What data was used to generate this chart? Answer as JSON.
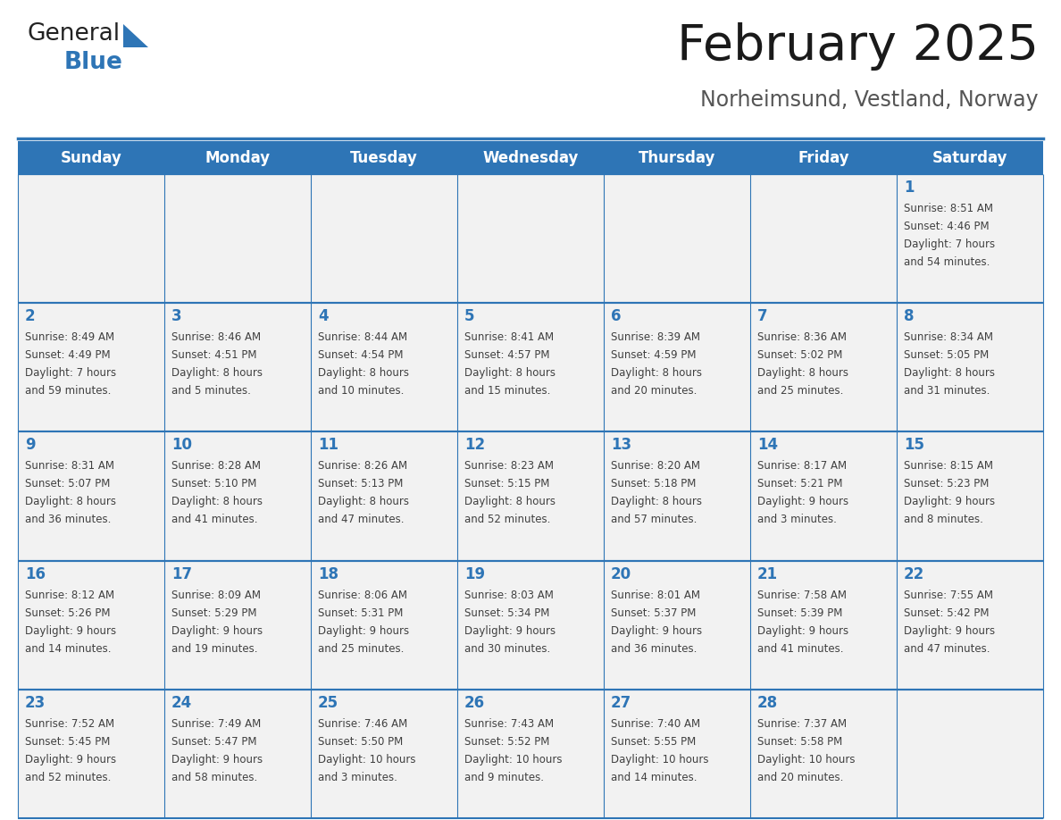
{
  "title": "February 2025",
  "subtitle": "Norheimsund, Vestland, Norway",
  "header_bg": "#2E75B6",
  "header_text_color": "#FFFFFF",
  "cell_bg": "#F2F2F2",
  "day_number_color": "#2E75B6",
  "text_color": "#404040",
  "border_color": "#2E75B6",
  "days_of_week": [
    "Sunday",
    "Monday",
    "Tuesday",
    "Wednesday",
    "Thursday",
    "Friday",
    "Saturday"
  ],
  "logo_general_color": "#222222",
  "logo_blue_color": "#2E75B6",
  "calendar_data": {
    "1": {
      "sunrise": "8:51 AM",
      "sunset": "4:46 PM",
      "daylight": "7 hours and 54 minutes."
    },
    "2": {
      "sunrise": "8:49 AM",
      "sunset": "4:49 PM",
      "daylight": "7 hours and 59 minutes."
    },
    "3": {
      "sunrise": "8:46 AM",
      "sunset": "4:51 PM",
      "daylight": "8 hours and 5 minutes."
    },
    "4": {
      "sunrise": "8:44 AM",
      "sunset": "4:54 PM",
      "daylight": "8 hours and 10 minutes."
    },
    "5": {
      "sunrise": "8:41 AM",
      "sunset": "4:57 PM",
      "daylight": "8 hours and 15 minutes."
    },
    "6": {
      "sunrise": "8:39 AM",
      "sunset": "4:59 PM",
      "daylight": "8 hours and 20 minutes."
    },
    "7": {
      "sunrise": "8:36 AM",
      "sunset": "5:02 PM",
      "daylight": "8 hours and 25 minutes."
    },
    "8": {
      "sunrise": "8:34 AM",
      "sunset": "5:05 PM",
      "daylight": "8 hours and 31 minutes."
    },
    "9": {
      "sunrise": "8:31 AM",
      "sunset": "5:07 PM",
      "daylight": "8 hours and 36 minutes."
    },
    "10": {
      "sunrise": "8:28 AM",
      "sunset": "5:10 PM",
      "daylight": "8 hours and 41 minutes."
    },
    "11": {
      "sunrise": "8:26 AM",
      "sunset": "5:13 PM",
      "daylight": "8 hours and 47 minutes."
    },
    "12": {
      "sunrise": "8:23 AM",
      "sunset": "5:15 PM",
      "daylight": "8 hours and 52 minutes."
    },
    "13": {
      "sunrise": "8:20 AM",
      "sunset": "5:18 PM",
      "daylight": "8 hours and 57 minutes."
    },
    "14": {
      "sunrise": "8:17 AM",
      "sunset": "5:21 PM",
      "daylight": "9 hours and 3 minutes."
    },
    "15": {
      "sunrise": "8:15 AM",
      "sunset": "5:23 PM",
      "daylight": "9 hours and 8 minutes."
    },
    "16": {
      "sunrise": "8:12 AM",
      "sunset": "5:26 PM",
      "daylight": "9 hours and 14 minutes."
    },
    "17": {
      "sunrise": "8:09 AM",
      "sunset": "5:29 PM",
      "daylight": "9 hours and 19 minutes."
    },
    "18": {
      "sunrise": "8:06 AM",
      "sunset": "5:31 PM",
      "daylight": "9 hours and 25 minutes."
    },
    "19": {
      "sunrise": "8:03 AM",
      "sunset": "5:34 PM",
      "daylight": "9 hours and 30 minutes."
    },
    "20": {
      "sunrise": "8:01 AM",
      "sunset": "5:37 PM",
      "daylight": "9 hours and 36 minutes."
    },
    "21": {
      "sunrise": "7:58 AM",
      "sunset": "5:39 PM",
      "daylight": "9 hours and 41 minutes."
    },
    "22": {
      "sunrise": "7:55 AM",
      "sunset": "5:42 PM",
      "daylight": "9 hours and 47 minutes."
    },
    "23": {
      "sunrise": "7:52 AM",
      "sunset": "5:45 PM",
      "daylight": "9 hours and 52 minutes."
    },
    "24": {
      "sunrise": "7:49 AM",
      "sunset": "5:47 PM",
      "daylight": "9 hours and 58 minutes."
    },
    "25": {
      "sunrise": "7:46 AM",
      "sunset": "5:50 PM",
      "daylight": "10 hours and 3 minutes."
    },
    "26": {
      "sunrise": "7:43 AM",
      "sunset": "5:52 PM",
      "daylight": "10 hours and 9 minutes."
    },
    "27": {
      "sunrise": "7:40 AM",
      "sunset": "5:55 PM",
      "daylight": "10 hours and 14 minutes."
    },
    "28": {
      "sunrise": "7:37 AM",
      "sunset": "5:58 PM",
      "daylight": "10 hours and 20 minutes."
    }
  },
  "week_layout": [
    [
      null,
      null,
      null,
      null,
      null,
      null,
      1
    ],
    [
      2,
      3,
      4,
      5,
      6,
      7,
      8
    ],
    [
      9,
      10,
      11,
      12,
      13,
      14,
      15
    ],
    [
      16,
      17,
      18,
      19,
      20,
      21,
      22
    ],
    [
      23,
      24,
      25,
      26,
      27,
      28,
      null
    ]
  ]
}
